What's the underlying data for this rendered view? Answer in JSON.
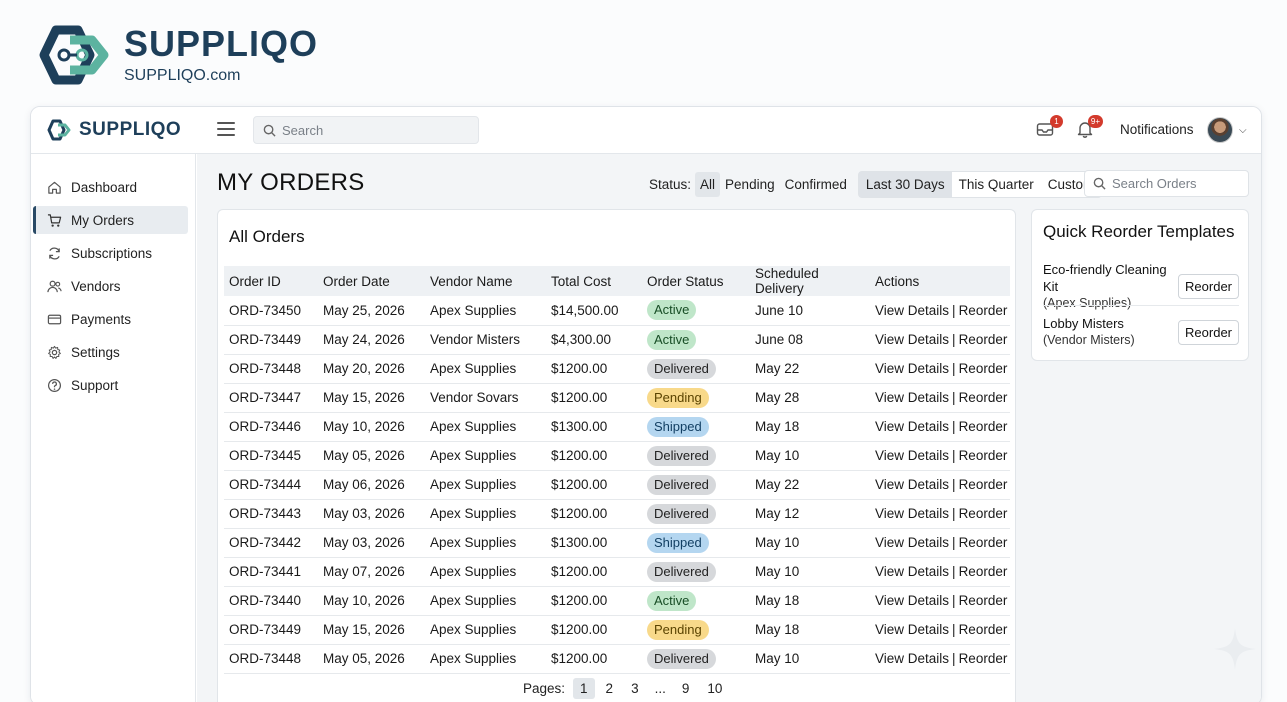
{
  "brand": {
    "name": "SUPPLIQO",
    "url": "SUPPLIQO.com",
    "color": "#1e3f5a",
    "accent": "#5cb3a0"
  },
  "topbar": {
    "brand": "SUPPLIQO",
    "search_placeholder": "Search",
    "inbox_badge": "1",
    "bell_badge": "9+",
    "notifications_label": "Notifications"
  },
  "sidebar": {
    "items": [
      {
        "label": "Dashboard",
        "icon": "home-icon"
      },
      {
        "label": "My Orders",
        "icon": "cart-icon",
        "active": true
      },
      {
        "label": "Subscriptions",
        "icon": "refresh-icon"
      },
      {
        "label": "Vendors",
        "icon": "users-icon"
      },
      {
        "label": "Payments",
        "icon": "card-icon"
      },
      {
        "label": "Settings",
        "icon": "gear-icon"
      },
      {
        "label": "Support",
        "icon": "help-icon"
      }
    ]
  },
  "main": {
    "title": "MY ORDERS",
    "filters": {
      "status_label": "Status:",
      "status_options": [
        "All",
        "Pending",
        "Confirmed"
      ],
      "status_selected": "All",
      "date_options": [
        "Last 30 Days",
        "This Quarter",
        "Custom"
      ],
      "date_selected": "Last 30 Days"
    },
    "orders_search_placeholder": "Search Orders"
  },
  "orders": {
    "title": "All Orders",
    "columns": [
      "Order ID",
      "Order Date",
      "Vendor Name",
      "Total Cost",
      "Order Status",
      "Scheduled Delivery",
      "Actions"
    ],
    "rows": [
      {
        "id": "ORD-73450",
        "date": "May 25, 2026",
        "vendor": "Apex Supplies",
        "cost": "$14,500.00",
        "status": "Active",
        "delivery": "June 10"
      },
      {
        "id": "ORD-73449",
        "date": "May 24, 2026",
        "vendor": "Vendor Misters",
        "cost": "$4,300.00",
        "status": "Active",
        "delivery": "June 08"
      },
      {
        "id": "ORD-73448",
        "date": "May 20, 2026",
        "vendor": "Apex Supplies",
        "cost": "$1200.00",
        "status": "Delivered",
        "delivery": "May 22"
      },
      {
        "id": "ORD-73447",
        "date": "May 15, 2026",
        "vendor": "Vendor Sovars",
        "cost": "$1200.00",
        "status": "Pending",
        "delivery": "May 28"
      },
      {
        "id": "ORD-73446",
        "date": "May 10, 2026",
        "vendor": "Apex Supplies",
        "cost": "$1300.00",
        "status": "Shipped",
        "delivery": "May 18"
      },
      {
        "id": "ORD-73445",
        "date": "May 05, 2026",
        "vendor": "Apex Supplies",
        "cost": "$1200.00",
        "status": "Delivered",
        "delivery": "May 10"
      },
      {
        "id": "ORD-73444",
        "date": "May 06, 2026",
        "vendor": "Apex Supplies",
        "cost": "$1200.00",
        "status": "Delivered",
        "delivery": "May 22"
      },
      {
        "id": "ORD-73443",
        "date": "May 03, 2026",
        "vendor": "Apex Supplies",
        "cost": "$1200.00",
        "status": "Delivered",
        "delivery": "May 12"
      },
      {
        "id": "ORD-73442",
        "date": "May 03, 2026",
        "vendor": "Apex Supplies",
        "cost": "$1300.00",
        "status": "Shipped",
        "delivery": "May 10"
      },
      {
        "id": "ORD-73441",
        "date": "May 07, 2026",
        "vendor": "Apex Supplies",
        "cost": "$1200.00",
        "status": "Delivered",
        "delivery": "May 10"
      },
      {
        "id": "ORD-73440",
        "date": "May 10, 2026",
        "vendor": "Apex Supplies",
        "cost": "$1200.00",
        "status": "Active",
        "delivery": "May 18"
      },
      {
        "id": "ORD-73449",
        "date": "May 15, 2026",
        "vendor": "Apex Supplies",
        "cost": "$1200.00",
        "status": "Pending",
        "delivery": "May 18"
      },
      {
        "id": "ORD-73448",
        "date": "May 05, 2026",
        "vendor": "Apex Supplies",
        "cost": "$1200.00",
        "status": "Delivered",
        "delivery": "May 10"
      }
    ],
    "action_view": "View Details",
    "action_separator": "|",
    "action_reorder": "Reorder",
    "pagination": {
      "label": "Pages:",
      "pages": [
        "1",
        "2",
        "3"
      ],
      "ellipsis": "...",
      "last_pages": [
        "9",
        "10"
      ],
      "current": "1"
    }
  },
  "templates": {
    "title": "Quick Reorder Templates",
    "items": [
      {
        "name": "Eco-friendly Cleaning Kit",
        "vendor": "(Apex Supplies)",
        "button": "Reorder"
      },
      {
        "name": "Lobby Misters",
        "vendor": "(Vendor Misters)",
        "button": "Reorder"
      }
    ]
  },
  "status_colors": {
    "Active": "#bfe6c9",
    "Delivered": "#d6d8db",
    "Pending": "#f8d98a",
    "Shipped": "#b4d6f0"
  }
}
